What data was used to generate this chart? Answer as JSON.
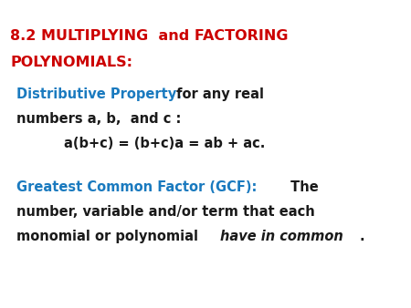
{
  "background_color": "#ffffff",
  "title_color": "#cc0000",
  "blue_color": "#1a7abf",
  "black_color": "#1a1a1a",
  "title_fontsize": 11.5,
  "body_fontsize": 10.5,
  "fig_width": 4.5,
  "fig_height": 3.38,
  "dpi": 100
}
